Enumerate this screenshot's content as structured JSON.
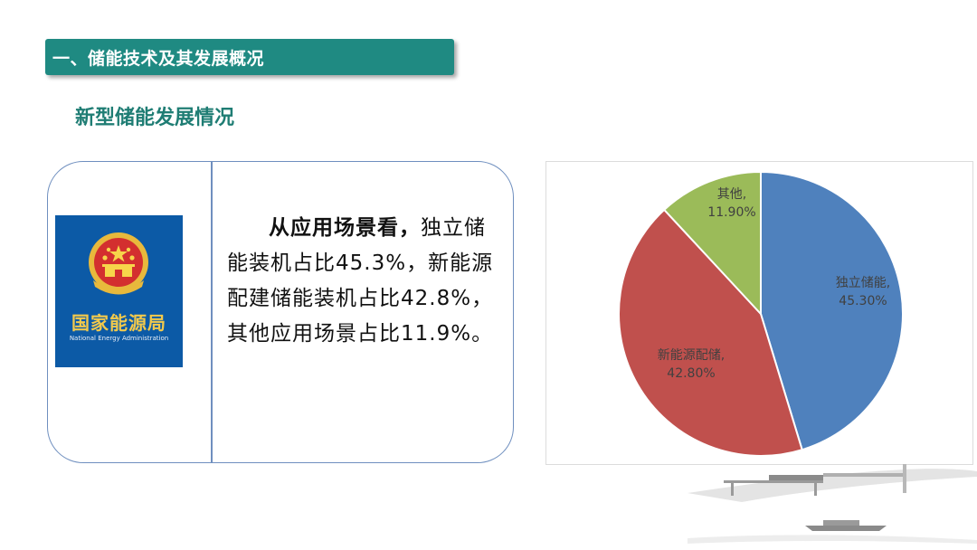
{
  "header": {
    "section_title": "一、储能技术及其发展概况"
  },
  "subtitle": "新型储能发展情况",
  "card": {
    "logo": {
      "name_cn": "国家能源局",
      "name_en": "National Energy Administration"
    },
    "text_lead": "从应用场景看，",
    "text_body": "独立储能装机占比45.3%，新能源配建储能装机占比42.8%， 其他应用场景占比11.9%。"
  },
  "chart_data": {
    "type": "pie",
    "slices": [
      {
        "label": "独立储能,",
        "value_label": "45.30%",
        "value": 45.3,
        "color": "#4f81bd"
      },
      {
        "label": "新能源配储,",
        "value_label": "42.80%",
        "value": 42.8,
        "color": "#c0504d"
      },
      {
        "label": "其他,",
        "value_label": "11.90%",
        "value": 11.9,
        "color": "#9bbb59"
      }
    ]
  }
}
